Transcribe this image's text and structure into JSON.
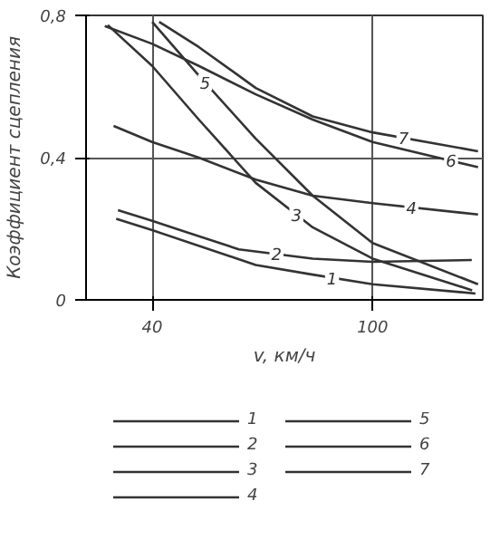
{
  "chart_data": {
    "type": "line",
    "xlabel": "v, км/ч",
    "ylabel": "Коэффициент сцепления",
    "xlim": [
      22,
      130
    ],
    "ylim": [
      0,
      0.8
    ],
    "xticks": [
      40,
      100
    ],
    "yticks": [
      0,
      {
        "value": 0.4,
        "label": "0,4"
      },
      {
        "value": 0.8,
        "label": "0,8"
      }
    ],
    "grid": true,
    "legend": "bottom",
    "line_style": "solid",
    "marker": "none",
    "series": [
      {
        "name": "1",
        "color": "#333333",
        "x": [
          30.2,
          40,
          68.2,
          83.7,
          100,
          128
        ],
        "values": [
          0.228,
          0.196,
          0.098,
          0.071,
          0.044,
          0.018
        ]
      },
      {
        "name": "2",
        "color": "#333333",
        "x": [
          30.7,
          40,
          63.6,
          83.7,
          100,
          127
        ],
        "values": [
          0.252,
          0.222,
          0.142,
          0.116,
          0.107,
          0.112
        ]
      },
      {
        "name": "3",
        "color": "#333333",
        "x": [
          27.9,
          40,
          52.7,
          68.2,
          83.7,
          100,
          127.1
        ],
        "values": [
          0.773,
          0.658,
          0.507,
          0.329,
          0.204,
          0.116,
          0.027
        ]
      },
      {
        "name": "4",
        "color": "#333333",
        "x": [
          29.5,
          40,
          52.7,
          68.2,
          83.7,
          100,
          128.7
        ],
        "values": [
          0.489,
          0.444,
          0.4,
          0.338,
          0.293,
          0.272,
          0.24
        ]
      },
      {
        "name": "5",
        "color": "#333333",
        "x": [
          40,
          52.7,
          68.2,
          83.7,
          100,
          128.7
        ],
        "values": [
          0.782,
          0.631,
          0.453,
          0.293,
          0.16,
          0.044
        ]
      },
      {
        "name": "6",
        "color": "#333333",
        "x": [
          27.1,
          40,
          52.7,
          68.2,
          83.7,
          100,
          128.7
        ],
        "values": [
          0.77,
          0.72,
          0.658,
          0.578,
          0.507,
          0.444,
          0.373
        ]
      },
      {
        "name": "7",
        "color": "#333333",
        "x": [
          41.9,
          52.7,
          68.2,
          83.7,
          100,
          128.7
        ],
        "values": [
          0.782,
          0.711,
          0.596,
          0.516,
          0.471,
          0.418
        ]
      }
    ]
  }
}
